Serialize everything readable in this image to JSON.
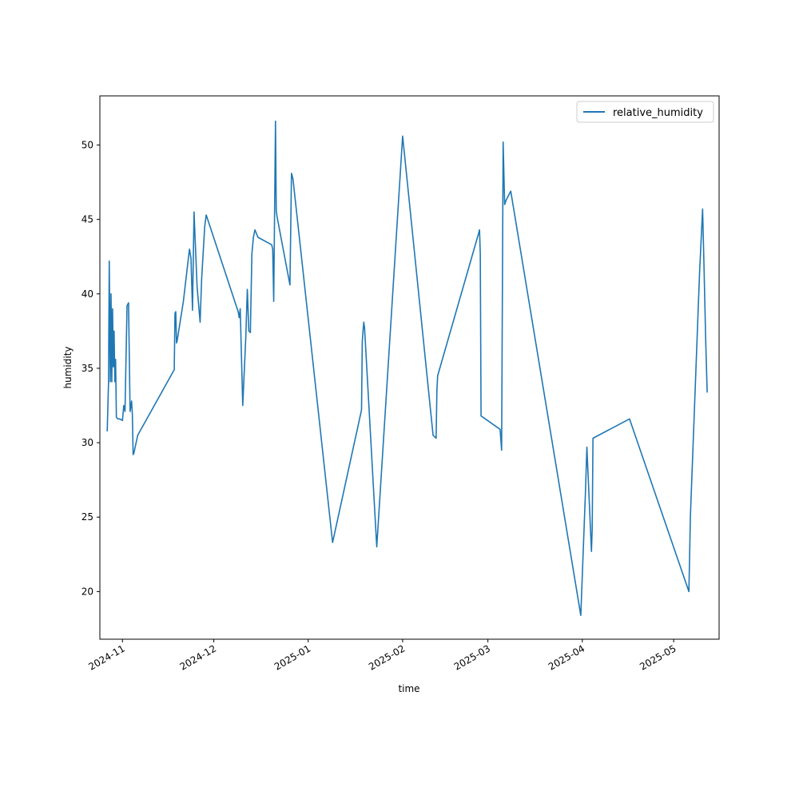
{
  "chart_data": {
    "type": "line",
    "title": "",
    "xlabel": "time",
    "ylabel": "humidity",
    "xlim": [
      "2024-10-24T14:00",
      "2025-05-15T22:00"
    ],
    "ylim": [
      16.8,
      53.3
    ],
    "x_ticks": [
      "2024-11-01",
      "2024-12-01",
      "2025-01-01",
      "2025-02-01",
      "2025-03-01",
      "2025-04-01",
      "2025-05-01"
    ],
    "x_tick_labels": [
      "2024-11",
      "2024-12",
      "2025-01",
      "2025-02",
      "2025-03",
      "2025-04",
      "2025-05"
    ],
    "y_ticks": [
      20,
      25,
      30,
      35,
      40,
      45,
      50
    ],
    "y_tick_labels": [
      "20",
      "25",
      "30",
      "35",
      "40",
      "45",
      "50"
    ],
    "grid": false,
    "legend_position": "top-right",
    "series": [
      {
        "name": "relative_humidity",
        "color": "#1f77b4",
        "x": [
          "2024-10-27T00:00",
          "2024-10-27T10:00",
          "2024-10-27T16:00",
          "2024-10-28T00:00",
          "2024-10-28T06:00",
          "2024-10-28T12:00",
          "2024-10-28T18:00",
          "2024-10-29T00:00",
          "2024-10-29T06:00",
          "2024-10-29T12:00",
          "2024-10-29T18:00",
          "2024-10-30T00:00",
          "2024-10-30T12:00",
          "2024-10-31T00:00",
          "2024-11-01T00:00",
          "2024-11-01T10:00",
          "2024-11-01T20:00",
          "2024-11-02T12:00",
          "2024-11-03T00:00",
          "2024-11-03T12:00",
          "2024-11-04T00:00",
          "2024-11-04T06:00",
          "2024-11-04T12:00",
          "2024-11-04T18:00",
          "2024-11-06T00:00",
          "2024-11-18T00:00",
          "2024-11-18T06:00",
          "2024-11-18T12:00",
          "2024-11-18T18:00",
          "2024-11-19T00:00",
          "2024-11-21T00:00",
          "2024-11-23T00:00",
          "2024-11-23T12:00",
          "2024-11-24T00:00",
          "2024-11-24T12:00",
          "2024-11-25T00:00",
          "2024-11-25T12:00",
          "2024-11-26T12:00",
          "2024-11-27T00:00",
          "2024-11-28T00:00",
          "2024-11-28T12:00",
          "2024-12-09T00:00",
          "2024-12-09T08:00",
          "2024-12-09T16:00",
          "2024-12-10T12:00",
          "2024-12-11T12:00",
          "2024-12-12T00:00",
          "2024-12-12T12:00",
          "2024-12-13T00:00",
          "2024-12-13T12:00",
          "2024-12-14T00:00",
          "2024-12-14T12:00",
          "2024-12-15T12:00",
          "2024-12-20T00:00",
          "2024-12-20T08:00",
          "2024-12-20T16:00",
          "2024-12-21T06:00",
          "2024-12-21T12:00",
          "2024-12-21T18:00",
          "2024-12-26T00:00",
          "2024-12-26T12:00",
          "2024-12-27T00:00",
          "2025-01-09T00:00",
          "2025-01-18T12:00",
          "2025-01-18T18:00",
          "2025-01-19T00:00",
          "2025-01-19T06:00",
          "2025-01-19T12:00",
          "2025-01-23T12:00",
          "2025-02-01T00:00",
          "2025-02-11T00:00",
          "2025-02-12T00:00",
          "2025-02-12T06:00",
          "2025-02-12T12:00",
          "2025-02-26T00:00",
          "2025-02-26T06:00",
          "2025-02-26T12:00",
          "2025-02-26T18:00",
          "2025-03-05T00:00",
          "2025-03-05T12:00",
          "2025-03-06T00:00",
          "2025-03-06T12:00",
          "2025-03-07T00:00",
          "2025-03-08T12:00",
          "2025-03-31T12:00",
          "2025-04-02T00:00",
          "2025-04-02T12:00",
          "2025-04-04T00:00",
          "2025-04-04T06:00",
          "2025-04-04T12:00",
          "2025-04-16T12:00",
          "2025-05-06T00:00",
          "2025-05-06T12:00",
          "2025-05-09T12:00",
          "2025-05-10T12:00",
          "2025-05-11T00:00",
          "2025-05-11T12:00",
          "2025-05-12T00:00"
        ],
        "values": [
          30.8,
          34.0,
          42.2,
          34.1,
          40.0,
          34.1,
          39.0,
          35.1,
          37.5,
          34.1,
          35.6,
          31.7,
          31.6,
          31.6,
          31.5,
          32.5,
          32.1,
          39.2,
          39.4,
          32.1,
          32.8,
          31.9,
          29.2,
          29.3,
          30.5,
          34.9,
          38.7,
          38.8,
          36.7,
          36.9,
          39.5,
          43.0,
          42.4,
          38.9,
          45.5,
          43.0,
          40.5,
          38.1,
          41.0,
          44.5,
          45.3,
          38.8,
          38.4,
          39.0,
          32.5,
          37.1,
          40.3,
          37.5,
          37.4,
          42.7,
          43.8,
          44.3,
          43.8,
          43.3,
          43.0,
          39.5,
          51.6,
          45.6,
          45.2,
          40.6,
          48.1,
          47.7,
          23.3,
          32.2,
          36.8,
          37.5,
          38.1,
          37.7,
          23.0,
          50.6,
          30.5,
          30.3,
          33.5,
          34.5,
          44.1,
          44.3,
          42.7,
          31.8,
          30.9,
          29.5,
          50.2,
          46.0,
          46.3,
          46.9,
          18.4,
          26.5,
          29.7,
          22.7,
          24.2,
          30.3,
          31.6,
          20.0,
          25.1,
          41.4,
          45.7,
          41.5,
          37.0,
          33.4
        ]
      }
    ]
  }
}
